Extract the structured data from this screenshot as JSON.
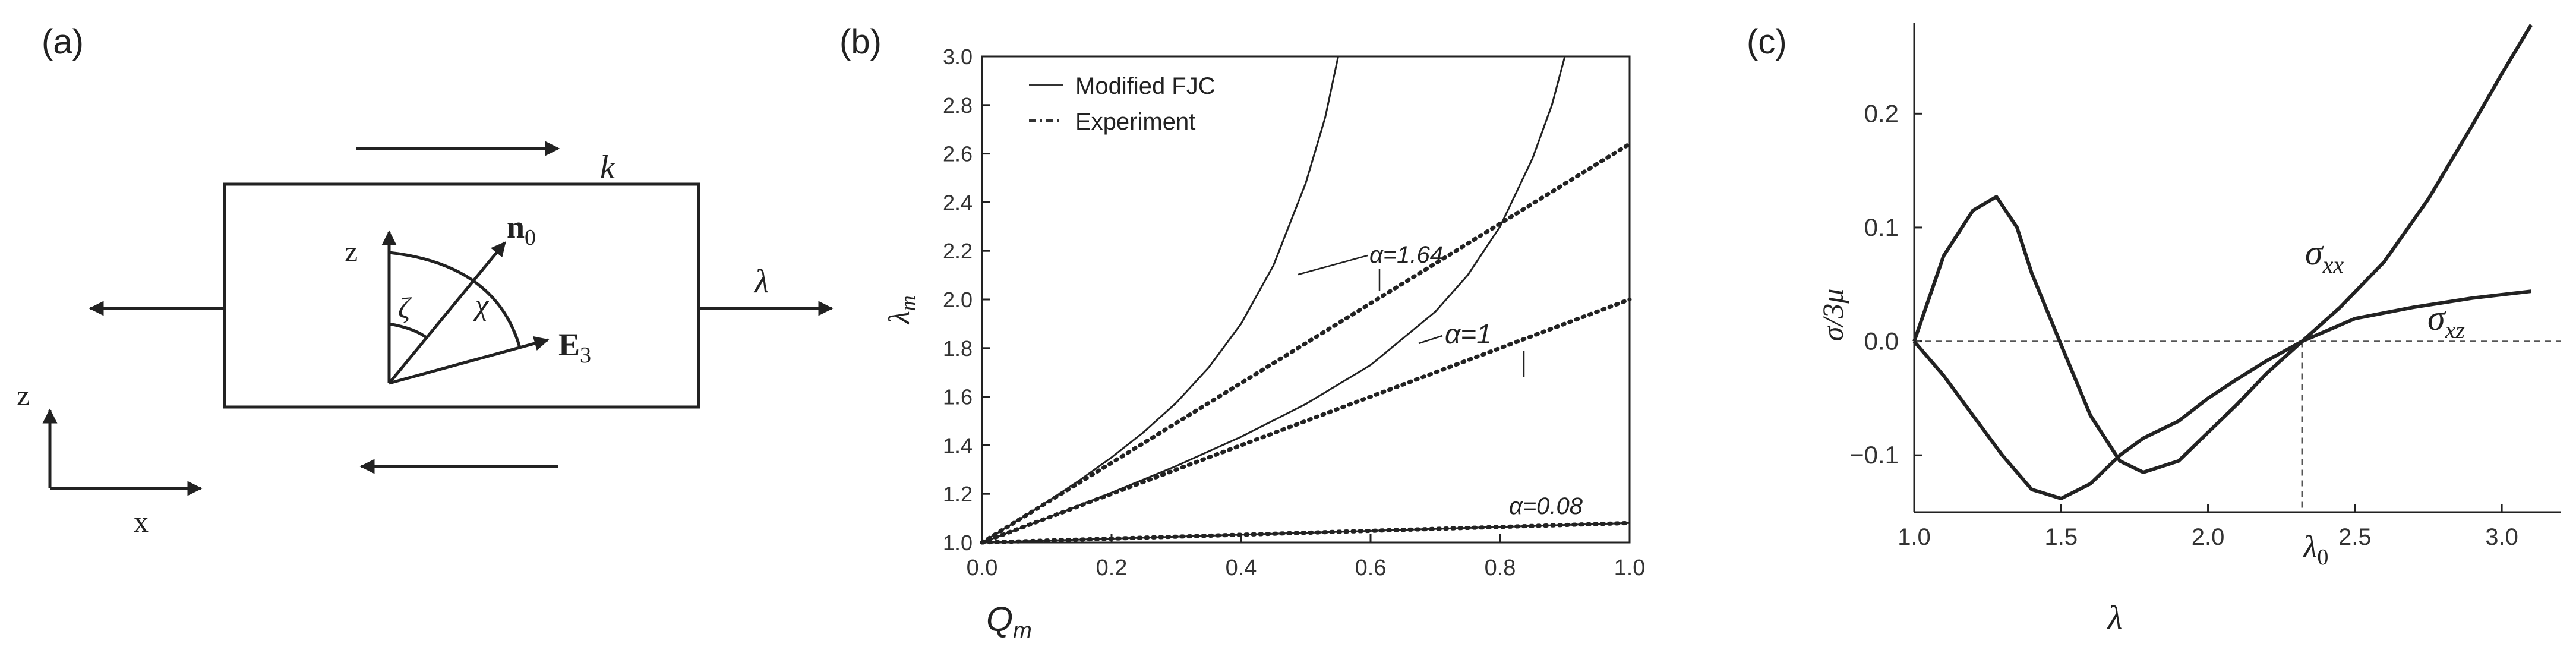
{
  "panel_a": {
    "label": "(a)",
    "symbols": {
      "k": "k",
      "lambda": "λ",
      "z_inner": "z",
      "zeta": "ζ",
      "chi": "χ",
      "n0": "n",
      "n0_sub": "0",
      "E3": "E",
      "E3_sub": "3",
      "z_axis": "z",
      "x_axis": "x"
    }
  },
  "chart_data": [
    {
      "panel": "(b)",
      "type": "line",
      "title": "",
      "xlabel": "Q",
      "xlabel_sub": "m",
      "ylabel": "λ",
      "ylabel_sub": "m",
      "xlim": [
        0.0,
        1.0
      ],
      "ylim": [
        1.0,
        3.0
      ],
      "xticks": [
        "0.0",
        "0.2",
        "0.4",
        "0.6",
        "0.8",
        "1.0"
      ],
      "yticks": [
        "1.0",
        "1.2",
        "1.4",
        "1.6",
        "1.8",
        "2.0",
        "2.2",
        "2.4",
        "2.6",
        "2.8",
        "3.0"
      ],
      "legend": [
        {
          "name": "Modified FJC",
          "style": "solid"
        },
        {
          "name": "Experiment",
          "style": "dash-dot"
        }
      ],
      "annotations": [
        "α=1.64",
        "α=1",
        "α=0.08"
      ],
      "series": [
        {
          "name": "Modified FJC (α=1.64)",
          "style": "solid",
          "x": [
            0,
            0.05,
            0.1,
            0.15,
            0.2,
            0.25,
            0.3,
            0.35,
            0.4,
            0.45,
            0.5,
            0.53,
            0.55
          ],
          "y": [
            1.0,
            1.082,
            1.166,
            1.255,
            1.35,
            1.455,
            1.575,
            1.72,
            1.9,
            2.14,
            2.48,
            2.75,
            3.0
          ]
        },
        {
          "name": "Modified FJC (α=1)",
          "style": "solid",
          "x": [
            0,
            0.1,
            0.2,
            0.3,
            0.4,
            0.5,
            0.6,
            0.7,
            0.75,
            0.8,
            0.85,
            0.88,
            0.9
          ],
          "y": [
            1.0,
            1.1,
            1.205,
            1.315,
            1.435,
            1.57,
            1.73,
            1.95,
            2.1,
            2.3,
            2.58,
            2.8,
            3.0
          ]
        },
        {
          "name": "Modified FJC (α=0.08)",
          "style": "solid",
          "x": [
            0,
            0.2,
            0.4,
            0.6,
            0.8,
            1.0
          ],
          "y": [
            1.0,
            1.016,
            1.032,
            1.048,
            1.064,
            1.08
          ]
        },
        {
          "name": "Experiment (α=1.64)",
          "style": "dotted",
          "x": [
            0,
            1.0
          ],
          "y": [
            1.0,
            2.64
          ]
        },
        {
          "name": "Experiment (α=1)",
          "style": "dotted",
          "x": [
            0,
            1.0
          ],
          "y": [
            1.0,
            2.0
          ]
        },
        {
          "name": "Experiment (α=0.08)",
          "style": "dotted",
          "x": [
            0,
            1.0
          ],
          "y": [
            1.0,
            1.08
          ]
        }
      ]
    },
    {
      "panel": "(c)",
      "type": "line",
      "title": "",
      "xlabel": "λ",
      "ylabel": "σ/3μ",
      "xlim": [
        1.0,
        3.2
      ],
      "ylim": [
        -0.15,
        0.28
      ],
      "xticks": [
        "1.0",
        "1.5",
        "2.0",
        "2.5",
        "3.0"
      ],
      "xtick_values": [
        1.0,
        1.5,
        2.0,
        2.5,
        3.0
      ],
      "yticks": [
        "0.2",
        "0.1",
        "0.0",
        "−0.1"
      ],
      "ytick_values": [
        0.2,
        0.1,
        0.0,
        -0.1
      ],
      "marker_label": "λ",
      "marker_label_sub": "0",
      "marker_x": 2.32,
      "reference_line_y": 0.0,
      "series": [
        {
          "name": "σ",
          "sub": "xx",
          "x": [
            1.0,
            1.1,
            1.2,
            1.3,
            1.4,
            1.5,
            1.6,
            1.7,
            1.78,
            1.9,
            2.0,
            2.1,
            2.2,
            2.32,
            2.45,
            2.6,
            2.75,
            2.9,
            3.0,
            3.1
          ],
          "y": [
            0.0,
            -0.03,
            -0.065,
            -0.1,
            -0.13,
            -0.138,
            -0.125,
            -0.1,
            -0.085,
            -0.07,
            -0.05,
            -0.033,
            -0.017,
            0.0,
            0.03,
            0.07,
            0.125,
            0.19,
            0.235,
            0.278
          ]
        },
        {
          "name": "σ",
          "sub": "xz",
          "x": [
            1.0,
            1.1,
            1.2,
            1.28,
            1.35,
            1.4,
            1.5,
            1.6,
            1.7,
            1.78,
            1.9,
            2.0,
            2.1,
            2.2,
            2.32,
            2.5,
            2.7,
            2.9,
            3.1
          ],
          "y": [
            0.0,
            0.075,
            0.115,
            0.127,
            0.1,
            0.06,
            -0.003,
            -0.065,
            -0.105,
            -0.115,
            -0.105,
            -0.08,
            -0.055,
            -0.028,
            0.0,
            0.02,
            0.03,
            0.038,
            0.044
          ]
        }
      ]
    }
  ]
}
